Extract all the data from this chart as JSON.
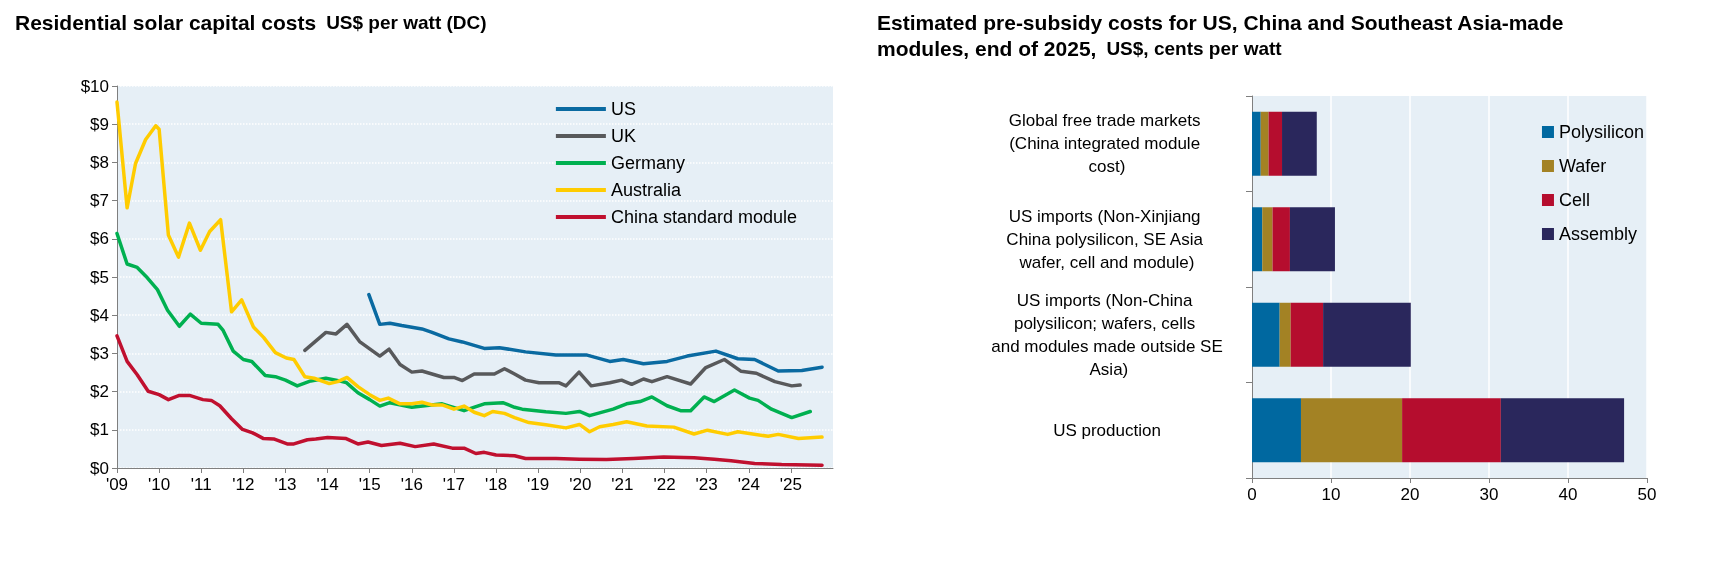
{
  "chart_data": [
    {
      "type": "line",
      "title": "Residential solar capital costs",
      "subtitle": "US$ per watt (DC)",
      "xlim": [
        2009,
        2026
      ],
      "xticks": [
        {
          "value": 2009,
          "label": "'09"
        },
        {
          "value": 2010,
          "label": "'10"
        },
        {
          "value": 2011,
          "label": "'11"
        },
        {
          "value": 2012,
          "label": "'12"
        },
        {
          "value": 2013,
          "label": "'13"
        },
        {
          "value": 2014,
          "label": "'14"
        },
        {
          "value": 2015,
          "label": "'15"
        },
        {
          "value": 2016,
          "label": "'16"
        },
        {
          "value": 2017,
          "label": "'17"
        },
        {
          "value": 2018,
          "label": "'18"
        },
        {
          "value": 2019,
          "label": "'19"
        },
        {
          "value": 2020,
          "label": "'20"
        },
        {
          "value": 2021,
          "label": "'21"
        },
        {
          "value": 2022,
          "label": "'22"
        },
        {
          "value": 2023,
          "label": "'23"
        },
        {
          "value": 2024,
          "label": "'24"
        },
        {
          "value": 2025,
          "label": "'25"
        }
      ],
      "ylim": [
        0,
        10
      ],
      "yticks": [
        {
          "value": 0,
          "label": "$0"
        },
        {
          "value": 1,
          "label": "$1"
        },
        {
          "value": 2,
          "label": "$2"
        },
        {
          "value": 3,
          "label": "$3"
        },
        {
          "value": 4,
          "label": "$4"
        },
        {
          "value": 5,
          "label": "$5"
        },
        {
          "value": 6,
          "label": "$6"
        },
        {
          "value": 7,
          "label": "$7"
        },
        {
          "value": 8,
          "label": "$8"
        },
        {
          "value": 9,
          "label": "$9"
        },
        {
          "value": 10,
          "label": "$10"
        }
      ],
      "grid": "y",
      "legend": "top right",
      "marker": "none",
      "line_style": "solid",
      "series": [
        {
          "name": "US",
          "color": "#0a6aa1",
          "x": [
            2014.98,
            2015.24,
            2015.48,
            2015.76,
            2016.24,
            2016.48,
            2016.88,
            2017.2,
            2017.72,
            2018.08,
            2018.7,
            2019.42,
            2020.14,
            2020.7,
            2021.02,
            2021.5,
            2022.06,
            2022.54,
            2023.22,
            2023.74,
            2024.14,
            2024.7,
            2025.26,
            2025.74
          ],
          "values": [
            4.54,
            3.76,
            3.79,
            3.73,
            3.64,
            3.55,
            3.38,
            3.3,
            3.13,
            3.15,
            3.04,
            2.96,
            2.96,
            2.79,
            2.84,
            2.73,
            2.79,
            2.93,
            3.06,
            2.86,
            2.84,
            2.54,
            2.55,
            2.64
          ]
        },
        {
          "name": "UK",
          "color": "#58595b",
          "x": [
            2013.46,
            2013.96,
            2014.2,
            2014.46,
            2014.76,
            2015.24,
            2015.46,
            2015.72,
            2016.0,
            2016.24,
            2016.76,
            2017.0,
            2017.2,
            2017.48,
            2017.96,
            2018.2,
            2018.44,
            2018.7,
            2019.02,
            2019.5,
            2019.66,
            2019.97,
            2020.26,
            2020.7,
            2020.98,
            2021.22,
            2021.5,
            2021.7,
            2022.06,
            2022.62,
            2022.98,
            2023.42,
            2023.82,
            2024.18,
            2024.62,
            2025.02,
            2025.22
          ],
          "values": [
            3.08,
            3.55,
            3.51,
            3.76,
            3.31,
            2.93,
            3.11,
            2.71,
            2.51,
            2.54,
            2.37,
            2.37,
            2.29,
            2.46,
            2.46,
            2.6,
            2.46,
            2.3,
            2.23,
            2.23,
            2.15,
            2.51,
            2.15,
            2.23,
            2.3,
            2.19,
            2.33,
            2.26,
            2.39,
            2.2,
            2.63,
            2.84,
            2.53,
            2.48,
            2.26,
            2.15,
            2.17
          ]
        },
        {
          "name": "Germany",
          "color": "#00b050",
          "x": [
            2009.0,
            2009.24,
            2009.48,
            2009.72,
            2009.96,
            2010.2,
            2010.48,
            2010.74,
            2011.0,
            2011.4,
            2011.52,
            2011.76,
            2012.0,
            2012.2,
            2012.52,
            2012.76,
            2013.0,
            2013.28,
            2013.6,
            2013.96,
            2014.2,
            2014.44,
            2014.72,
            2015.0,
            2015.24,
            2015.48,
            2016.0,
            2016.72,
            2017.24,
            2017.72,
            2018.16,
            2018.44,
            2018.62,
            2019.18,
            2019.66,
            2019.98,
            2020.22,
            2020.78,
            2021.1,
            2021.42,
            2021.7,
            2022.06,
            2022.38,
            2022.62,
            2022.94,
            2023.18,
            2023.66,
            2024.02,
            2024.22,
            2024.54,
            2025.02,
            2025.46
          ],
          "values": [
            6.14,
            5.34,
            5.25,
            4.98,
            4.67,
            4.13,
            3.71,
            4.03,
            3.79,
            3.76,
            3.6,
            3.06,
            2.84,
            2.79,
            2.42,
            2.39,
            2.3,
            2.15,
            2.28,
            2.35,
            2.3,
            2.24,
            1.97,
            1.79,
            1.62,
            1.71,
            1.59,
            1.68,
            1.5,
            1.68,
            1.71,
            1.59,
            1.54,
            1.47,
            1.43,
            1.48,
            1.37,
            1.54,
            1.68,
            1.74,
            1.86,
            1.63,
            1.5,
            1.5,
            1.86,
            1.74,
            2.04,
            1.83,
            1.77,
            1.54,
            1.32,
            1.48
          ]
        },
        {
          "name": "Australia",
          "color": "#ffcc00",
          "x": [
            2009.0,
            2009.24,
            2009.44,
            2009.68,
            2009.92,
            2010.0,
            2010.22,
            2010.46,
            2010.72,
            2010.98,
            2011.2,
            2011.46,
            2011.72,
            2011.96,
            2012.24,
            2012.48,
            2012.76,
            2013.02,
            2013.2,
            2013.46,
            2013.68,
            2014.04,
            2014.24,
            2014.46,
            2014.72,
            2015.0,
            2015.24,
            2015.44,
            2015.72,
            2016.0,
            2016.24,
            2016.48,
            2016.72,
            2017.0,
            2017.24,
            2017.48,
            2017.72,
            2017.92,
            2018.2,
            2018.44,
            2018.78,
            2019.18,
            2019.66,
            2019.98,
            2020.22,
            2020.46,
            2020.78,
            2021.1,
            2021.58,
            2022.22,
            2022.7,
            2023.02,
            2023.5,
            2023.74,
            2024.46,
            2024.7,
            2025.18,
            2025.74
          ],
          "values": [
            9.58,
            6.81,
            7.97,
            8.6,
            8.96,
            8.87,
            6.1,
            5.52,
            6.41,
            5.7,
            6.19,
            6.5,
            4.09,
            4.4,
            3.69,
            3.42,
            3.02,
            2.88,
            2.84,
            2.39,
            2.35,
            2.21,
            2.26,
            2.37,
            2.13,
            1.92,
            1.77,
            1.83,
            1.68,
            1.68,
            1.72,
            1.65,
            1.65,
            1.54,
            1.62,
            1.46,
            1.37,
            1.48,
            1.43,
            1.32,
            1.19,
            1.13,
            1.05,
            1.14,
            0.95,
            1.08,
            1.14,
            1.21,
            1.1,
            1.07,
            0.89,
            0.99,
            0.88,
            0.95,
            0.83,
            0.88,
            0.77,
            0.81
          ]
        },
        {
          "name": "China standard module",
          "color": "#c0102f",
          "x": [
            2009.0,
            2009.24,
            2009.48,
            2009.74,
            2010.0,
            2010.22,
            2010.48,
            2010.72,
            2011.04,
            2011.24,
            2011.44,
            2011.72,
            2011.98,
            2012.22,
            2012.48,
            2012.72,
            2013.04,
            2013.2,
            2013.52,
            2013.72,
            2014.0,
            2014.44,
            2014.72,
            2014.96,
            2015.28,
            2015.72,
            2016.08,
            2016.52,
            2016.96,
            2017.24,
            2017.52,
            2017.72,
            2018.0,
            2018.44,
            2018.7,
            2019.42,
            2019.98,
            2020.62,
            2021.26,
            2021.98,
            2022.7,
            2023.18,
            2023.58,
            2024.14,
            2024.78,
            2025.74
          ],
          "values": [
            3.46,
            2.79,
            2.44,
            2.01,
            1.92,
            1.79,
            1.9,
            1.9,
            1.79,
            1.77,
            1.63,
            1.29,
            1.01,
            0.92,
            0.77,
            0.76,
            0.63,
            0.63,
            0.74,
            0.76,
            0.8,
            0.77,
            0.63,
            0.68,
            0.59,
            0.65,
            0.56,
            0.63,
            0.52,
            0.52,
            0.38,
            0.41,
            0.34,
            0.32,
            0.25,
            0.25,
            0.23,
            0.22,
            0.25,
            0.29,
            0.27,
            0.23,
            0.19,
            0.12,
            0.09,
            0.07
          ]
        }
      ]
    },
    {
      "type": "bar",
      "orientation": "horizontal",
      "stacked": true,
      "title": "Estimated pre-subsidy costs for US, China and Southeast Asia-made modules, end of 2025,",
      "subtitle": "US$, cents per watt",
      "categories": [
        "Global free trade markets (China integrated module cost)",
        "US imports (Non-Xinjiang China polysilicon, SE Asia wafer, cell and module)",
        "US imports (Non-China polysilicon; wafers, cells and modules made outside SE Asia)",
        "US production"
      ],
      "xlim": [
        0,
        50
      ],
      "xticks": [
        0,
        10,
        20,
        30,
        40,
        50
      ],
      "grid": "x",
      "legend": "top right",
      "series": [
        {
          "name": "Polysilicon",
          "color": "#0068a0",
          "values": [
            1.1,
            1.3,
            3.5,
            6.2
          ]
        },
        {
          "name": "Wafer",
          "color": "#a38224",
          "values": [
            1.0,
            1.3,
            1.4,
            12.8
          ]
        },
        {
          "name": "Cell",
          "color": "#b50d2e",
          "values": [
            1.7,
            2.2,
            4.1,
            12.5
          ]
        },
        {
          "name": "Assembly",
          "color": "#2a275c",
          "values": [
            4.4,
            5.7,
            11.1,
            15.6
          ]
        }
      ]
    }
  ]
}
